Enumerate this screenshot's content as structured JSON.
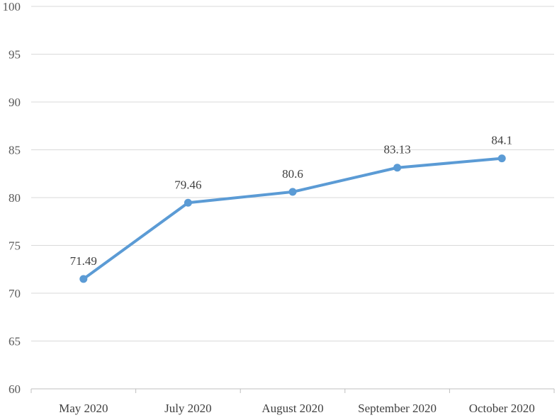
{
  "chart_data": {
    "type": "line",
    "categories": [
      "May 2020",
      "July 2020",
      "August 2020",
      "September 2020",
      "October 2020"
    ],
    "series": [
      {
        "values": [
          71.49,
          79.46,
          80.6,
          83.13,
          84.1
        ],
        "data_labels": [
          "71.49",
          "79.46",
          "80.6",
          "83.13",
          "84.1"
        ],
        "color": "#5B9BD5"
      }
    ],
    "ylim": [
      60,
      100
    ],
    "y_ticks": [
      60,
      65,
      70,
      75,
      80,
      85,
      90,
      95,
      100
    ],
    "y_tick_labels": [
      "60",
      "65",
      "70",
      "75",
      "80",
      "85",
      "90",
      "95",
      "100"
    ],
    "grid": "horizontal",
    "legend": "none",
    "gridline_color": "#D9D9D9",
    "axis_color": "#BFBFBF"
  }
}
